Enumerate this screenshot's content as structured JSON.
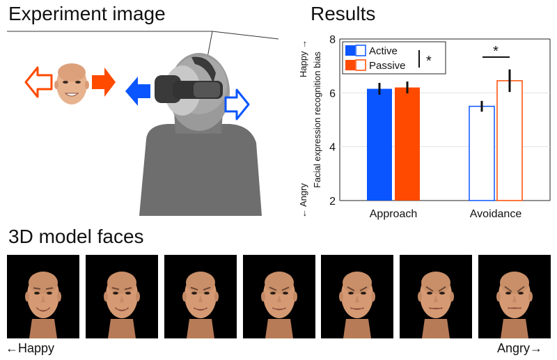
{
  "experiment": {
    "title": "Experiment image"
  },
  "results": {
    "title": "Results"
  },
  "faces_section": {
    "title": "3D model faces",
    "left_label": "←Happy",
    "right_label": "Angry→",
    "levels": [
      1,
      2,
      3,
      4,
      5,
      6,
      7
    ]
  },
  "colors": {
    "active": "#0a55ff",
    "passive": "#ff4a00",
    "gray_head": "#8a8a8a",
    "gray_body": "#6e6e6e"
  },
  "chart_data": {
    "type": "bar",
    "categories": [
      "Approach",
      "Avoidance"
    ],
    "series": [
      {
        "name": "Active",
        "values": [
          6.15,
          5.5
        ],
        "errors": [
          0.22,
          0.2
        ]
      },
      {
        "name": "Passive",
        "values": [
          6.2,
          6.45
        ],
        "errors": [
          0.22,
          0.42
        ]
      }
    ],
    "ylabel": "Facial expression recognition bias",
    "ylabel_top": "Happy →",
    "ylabel_bottom": "← Angry",
    "ylim": [
      2,
      8
    ],
    "yticks": [
      "2",
      "4",
      "6",
      "8"
    ],
    "grid": true,
    "legend_position": "top-left",
    "bar_styles": {
      "Approach": "filled",
      "Avoidance": "outline"
    },
    "significance_marks": [
      {
        "label": "*",
        "between": "Active-Passive (Avoidance)"
      },
      {
        "label": "*",
        "between": "legend (Active vs Passive)"
      }
    ]
  }
}
